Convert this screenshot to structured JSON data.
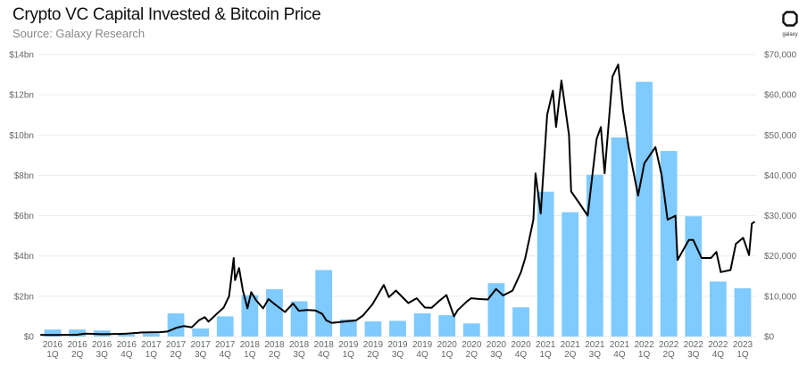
{
  "title": "Crypto VC Capital Invested & Bitcoin Price",
  "subtitle": "Source: Galaxy Research",
  "logo_text": "galaxy",
  "colors": {
    "bars": "#7fcaff",
    "line": "#000000",
    "grid": "#ececec"
  },
  "chart_data": {
    "type": "bar+line",
    "grid": true,
    "legend": "none",
    "categories": [
      "2016 1Q",
      "2016 2Q",
      "2016 3Q",
      "2016 4Q",
      "2017 1Q",
      "2017 2Q",
      "2017 3Q",
      "2017 4Q",
      "2018 1Q",
      "2018 2Q",
      "2018 3Q",
      "2018 4Q",
      "2019 1Q",
      "2019 2Q",
      "2019 3Q",
      "2019 4Q",
      "2020 1Q",
      "2020 2Q",
      "2020 3Q",
      "2020 4Q",
      "2021 1Q",
      "2021 2Q",
      "2021 3Q",
      "2021 4Q",
      "2022 1Q",
      "2022 2Q",
      "2022 3Q",
      "2022 4Q",
      "2023 1Q"
    ],
    "bar_values_bn": [
      0.35,
      0.35,
      0.3,
      0.1,
      0.15,
      1.15,
      0.4,
      1.0,
      2.05,
      2.35,
      1.75,
      3.3,
      0.85,
      0.75,
      0.78,
      1.15,
      1.06,
      0.65,
      2.65,
      1.45,
      7.19,
      6.17,
      8.03,
      9.88,
      12.64,
      9.21,
      5.97,
      2.73,
      2.4
    ],
    "left_axis": {
      "ylim": [
        0,
        14
      ],
      "ticks": [
        "$0",
        "$2bn",
        "$4bn",
        "$6bn",
        "$8bn",
        "$10bn",
        "$12bn",
        "$14bn"
      ]
    },
    "right_axis": {
      "ylim": [
        0,
        70000
      ],
      "ticks": [
        "$0",
        "$10,000",
        "$20,000",
        "$30,000",
        "$40,000",
        "$50,000",
        "$60,000",
        "$70,000"
      ]
    },
    "line_series": {
      "dates": [
        "2016-01-01",
        "2016-02-15",
        "2016-04-01",
        "2016-05-15",
        "2016-06-15",
        "2016-07-15",
        "2016-08-15",
        "2016-09-15",
        "2016-10-15",
        "2016-11-15",
        "2016-12-31",
        "2017-01-05",
        "2017-02-15",
        "2017-03-20",
        "2017-04-15",
        "2017-05-20",
        "2017-06-15",
        "2017-07-15",
        "2017-08-10",
        "2017-09-01",
        "2017-09-15",
        "2017-10-15",
        "2017-11-10",
        "2017-11-30",
        "2017-12-17",
        "2017-12-22",
        "2018-01-06",
        "2018-01-20",
        "2018-02-06",
        "2018-02-20",
        "2018-03-10",
        "2018-04-05",
        "2018-04-25",
        "2018-05-15",
        "2018-06-25",
        "2018-07-25",
        "2018-08-15",
        "2018-09-15",
        "2018-10-15",
        "2018-11-10",
        "2018-11-25",
        "2018-12-15",
        "2019-01-15",
        "2019-02-15",
        "2019-03-15",
        "2019-04-10",
        "2019-05-15",
        "2019-06-26",
        "2019-07-15",
        "2019-08-10",
        "2019-09-25",
        "2019-10-26",
        "2019-11-25",
        "2019-12-20",
        "2020-01-15",
        "2020-02-13",
        "2020-03-12",
        "2020-03-25",
        "2020-04-30",
        "2020-05-15",
        "2020-06-15",
        "2020-07-15",
        "2020-08-15",
        "2020-09-10",
        "2020-10-15",
        "2020-11-15",
        "2020-12-01",
        "2020-12-31",
        "2021-01-08",
        "2021-01-27",
        "2021-02-20",
        "2021-03-13",
        "2021-03-25",
        "2021-04-14",
        "2021-05-12",
        "2021-05-20",
        "2021-06-20",
        "2021-07-20",
        "2021-08-22",
        "2021-09-07",
        "2021-09-21",
        "2021-10-20",
        "2021-11-10",
        "2021-11-28",
        "2021-12-20",
        "2022-01-23",
        "2022-02-15",
        "2022-03-28",
        "2022-04-20",
        "2022-05-12",
        "2022-06-10",
        "2022-06-18",
        "2022-07-30",
        "2022-08-15",
        "2022-09-15",
        "2022-10-20",
        "2022-11-09",
        "2022-11-25",
        "2022-12-31",
        "2023-01-20",
        "2023-02-16",
        "2023-03-10",
        "2023-03-20",
        "2023-03-31"
      ],
      "values": [
        430,
        400,
        420,
        450,
        700,
        660,
        575,
        610,
        640,
        740,
        960,
        1000,
        1050,
        1080,
        1250,
        2200,
        2600,
        2300,
        4000,
        4800,
        3700,
        5600,
        7200,
        10000,
        19500,
        14000,
        17000,
        11500,
        7000,
        11000,
        9000,
        7000,
        9300,
        8200,
        6100,
        8200,
        6400,
        6600,
        6500,
        5600,
        4000,
        3400,
        3600,
        3800,
        4000,
        5200,
        8000,
        12800,
        9800,
        11400,
        8300,
        9500,
        7200,
        7150,
        8700,
        10300,
        5000,
        6500,
        8800,
        9500,
        9300,
        9200,
        11800,
        10200,
        11400,
        16000,
        19500,
        29000,
        40500,
        30500,
        55000,
        61000,
        52000,
        63500,
        50000,
        36000,
        33000,
        30000,
        49000,
        52000,
        40500,
        64500,
        67500,
        56000,
        46500,
        35000,
        43000,
        47000,
        40000,
        29000,
        30000,
        19000,
        24000,
        24000,
        19500,
        19500,
        21000,
        16000,
        16500,
        23000,
        24500,
        20200,
        28000,
        28500
      ]
    }
  }
}
